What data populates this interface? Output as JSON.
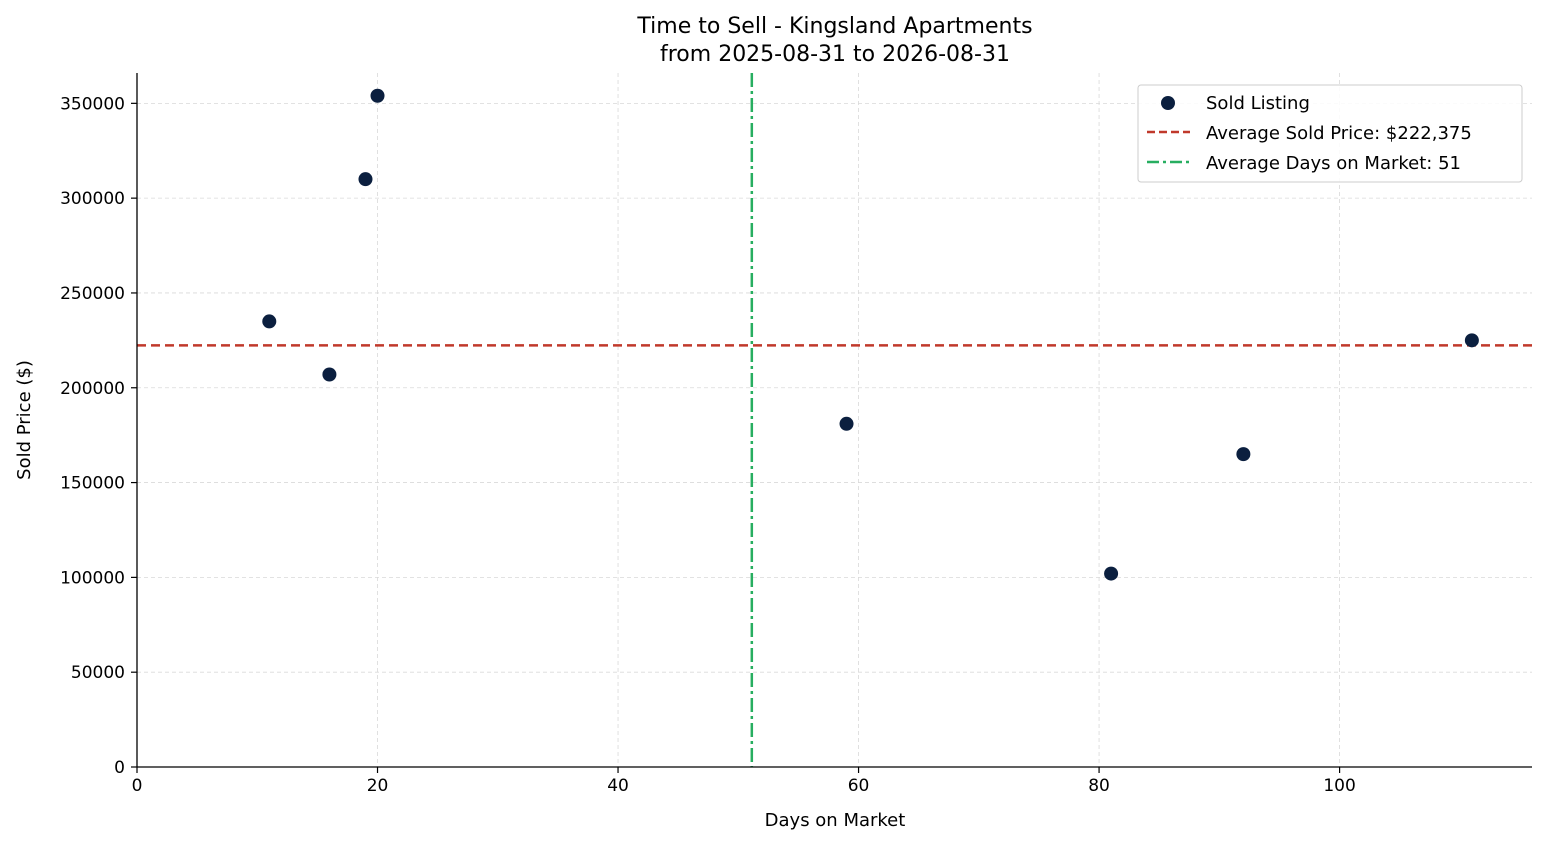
{
  "chart_data": {
    "type": "scatter",
    "title": "Time to Sell - Kingsland Apartments",
    "subtitle": "from 2025-08-31 to 2026-08-31",
    "xlabel": "Days on Market",
    "ylabel": "Sold Price ($)",
    "xlim": [
      0,
      116
    ],
    "ylim": [
      0,
      366000
    ],
    "x_ticks": [
      0,
      20,
      40,
      60,
      80,
      100
    ],
    "y_ticks": [
      0,
      50000,
      100000,
      150000,
      200000,
      250000,
      300000,
      350000
    ],
    "grid": true,
    "legend_position": "top-right",
    "series": [
      {
        "name": "Sold Listing",
        "color": "#0b1f3f",
        "points": [
          {
            "x": 11,
            "y": 235000
          },
          {
            "x": 16,
            "y": 207000
          },
          {
            "x": 19,
            "y": 310000
          },
          {
            "x": 20,
            "y": 354000
          },
          {
            "x": 59,
            "y": 181000
          },
          {
            "x": 81,
            "y": 102000
          },
          {
            "x": 92,
            "y": 165000
          },
          {
            "x": 111,
            "y": 225000
          }
        ]
      }
    ],
    "reference_lines": [
      {
        "name": "Average Sold Price: $222,375",
        "orientation": "horizontal",
        "value": 222375,
        "style": "dashed",
        "color": "#c0392b"
      },
      {
        "name": "Average Days on Market: 51",
        "orientation": "vertical",
        "value": 51.125,
        "style": "dash-dot",
        "color": "#27ae60"
      }
    ]
  }
}
